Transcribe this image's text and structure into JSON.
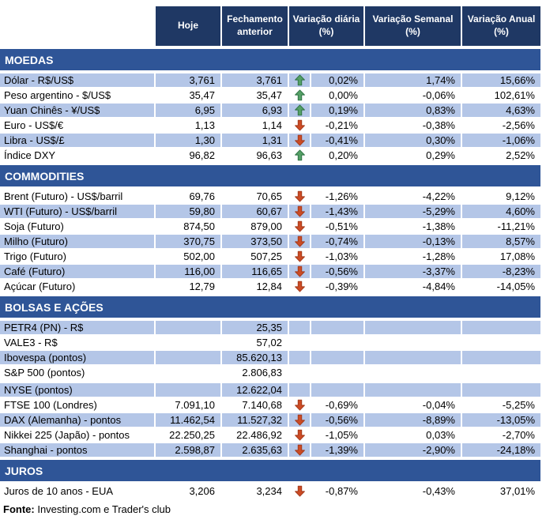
{
  "colors": {
    "header_bg": "#1F3864",
    "section_bg": "#2F5597",
    "row_shade": "#B4C6E7",
    "arrow_up_fill": "#55A066",
    "arrow_up_outline": "#2E7244",
    "arrow_down_fill": "#CC4B24",
    "arrow_down_outline": "#A33A1B"
  },
  "chart_data": {
    "type": "table",
    "columns": [
      "Hoje",
      "Fechamento anterior",
      "Variação diária (%)",
      "Variação Semanal (%)",
      "Variação Anual (%)"
    ],
    "sections": [
      {
        "title": "MOEDAS",
        "shade_start": true,
        "rows": [
          {
            "label": "Dólar - R$/US$",
            "hoje": "3,761",
            "fechamento": "3,761",
            "arrow": "up",
            "diaria": "0,02%",
            "semanal": "1,74%",
            "anual": "15,66%"
          },
          {
            "label": "Peso argentino - $/US$",
            "hoje": "35,47",
            "fechamento": "35,47",
            "arrow": "up",
            "diaria": "0,00%",
            "semanal": "-0,06%",
            "anual": "102,61%"
          },
          {
            "label": "Yuan Chinês - ¥/US$",
            "hoje": "6,95",
            "fechamento": "6,93",
            "arrow": "up",
            "diaria": "0,19%",
            "semanal": "0,83%",
            "anual": "4,63%"
          },
          {
            "label": "Euro - US$/€",
            "hoje": "1,13",
            "fechamento": "1,14",
            "arrow": "down",
            "diaria": "-0,21%",
            "semanal": "-0,38%",
            "anual": "-2,56%"
          },
          {
            "label": "Libra - US$/£",
            "hoje": "1,30",
            "fechamento": "1,31",
            "arrow": "down",
            "diaria": "-0,41%",
            "semanal": "0,30%",
            "anual": "-1,06%"
          },
          {
            "label": "Índice DXY",
            "hoje": "96,82",
            "fechamento": "96,63",
            "arrow": "up",
            "diaria": "0,20%",
            "semanal": "0,29%",
            "anual": "2,52%"
          }
        ]
      },
      {
        "title": "COMMODITIES",
        "shade_start": false,
        "rows": [
          {
            "label": "Brent (Futuro) - US$/barril",
            "hoje": "69,76",
            "fechamento": "70,65",
            "arrow": "down",
            "diaria": "-1,26%",
            "semanal": "-4,22%",
            "anual": "9,12%"
          },
          {
            "label": "WTI (Futuro) - US$/barril",
            "hoje": "59,80",
            "fechamento": "60,67",
            "arrow": "down",
            "diaria": "-1,43%",
            "semanal": "-5,29%",
            "anual": "4,60%"
          },
          {
            "label": "Soja (Futuro)",
            "hoje": "874,50",
            "fechamento": "879,00",
            "arrow": "down",
            "diaria": "-0,51%",
            "semanal": "-1,38%",
            "anual": "-11,21%"
          },
          {
            "label": "Milho (Futuro)",
            "hoje": "370,75",
            "fechamento": "373,50",
            "arrow": "down",
            "diaria": "-0,74%",
            "semanal": "-0,13%",
            "anual": "8,57%"
          },
          {
            "label": "Trigo (Futuro)",
            "hoje": "502,00",
            "fechamento": "507,25",
            "arrow": "down",
            "diaria": "-1,03%",
            "semanal": "-1,28%",
            "anual": "17,08%"
          },
          {
            "label": "Café (Futuro)",
            "hoje": "116,00",
            "fechamento": "116,65",
            "arrow": "down",
            "diaria": "-0,56%",
            "semanal": "-3,37%",
            "anual": "-8,23%"
          },
          {
            "label": "Açúcar (Futuro)",
            "hoje": "12,79",
            "fechamento": "12,84",
            "arrow": "down",
            "diaria": "-0,39%",
            "semanal": "-4,84%",
            "anual": "-14,05%"
          }
        ]
      },
      {
        "title": "BOLSAS E AÇÕES",
        "shade_start": true,
        "rows": [
          {
            "label": "PETR4 (PN) - R$",
            "hoje": "",
            "fechamento": "25,35",
            "arrow": null,
            "diaria": "",
            "semanal": "",
            "anual": ""
          },
          {
            "label": "VALE3 - R$",
            "hoje": "",
            "fechamento": "57,02",
            "arrow": null,
            "diaria": "",
            "semanal": "",
            "anual": ""
          },
          {
            "label": "Ibovespa (pontos)",
            "hoje": "",
            "fechamento": "85.620,13",
            "arrow": null,
            "diaria": "",
            "semanal": "",
            "anual": ""
          },
          {
            "label": "S&P 500 (pontos)",
            "hoje": "",
            "fechamento": "2.806,83",
            "arrow": null,
            "diaria": "",
            "semanal": "",
            "anual": ""
          },
          {
            "label": "NYSE (pontos)",
            "hoje": "",
            "fechamento": "12.622,04",
            "arrow": null,
            "diaria": "",
            "semanal": "",
            "anual": "",
            "gap_before": true
          },
          {
            "label": "FTSE 100 (Londres)",
            "hoje": "7.091,10",
            "fechamento": "7.140,68",
            "arrow": "down",
            "diaria": "-0,69%",
            "semanal": "-0,04%",
            "anual": "-5,25%"
          },
          {
            "label": "DAX (Alemanha) - pontos",
            "hoje": "11.462,54",
            "fechamento": "11.527,32",
            "arrow": "down",
            "diaria": "-0,56%",
            "semanal": "-8,89%",
            "anual": "-13,05%"
          },
          {
            "label": "Nikkei 225 (Japão) - pontos",
            "hoje": "22.250,25",
            "fechamento": "22.486,92",
            "arrow": "down",
            "diaria": "-1,05%",
            "semanal": "0,03%",
            "anual": "-2,70%"
          },
          {
            "label": "Shanghai - pontos",
            "hoje": "2.598,87",
            "fechamento": "2.635,63",
            "arrow": "down",
            "diaria": "-1,39%",
            "semanal": "-2,90%",
            "anual": "-24,18%"
          }
        ]
      },
      {
        "title": "JUROS",
        "shade_start": false,
        "rows": [
          {
            "label": "Juros de 10 anos - EUA",
            "hoje": "3,206",
            "fechamento": "3,234",
            "arrow": "down",
            "diaria": "-0,87%",
            "semanal": "-0,43%",
            "anual": "37,01%"
          }
        ]
      }
    ]
  },
  "footer": {
    "bold": "Fonte:",
    "text": " Investing.com e Trader's club"
  }
}
